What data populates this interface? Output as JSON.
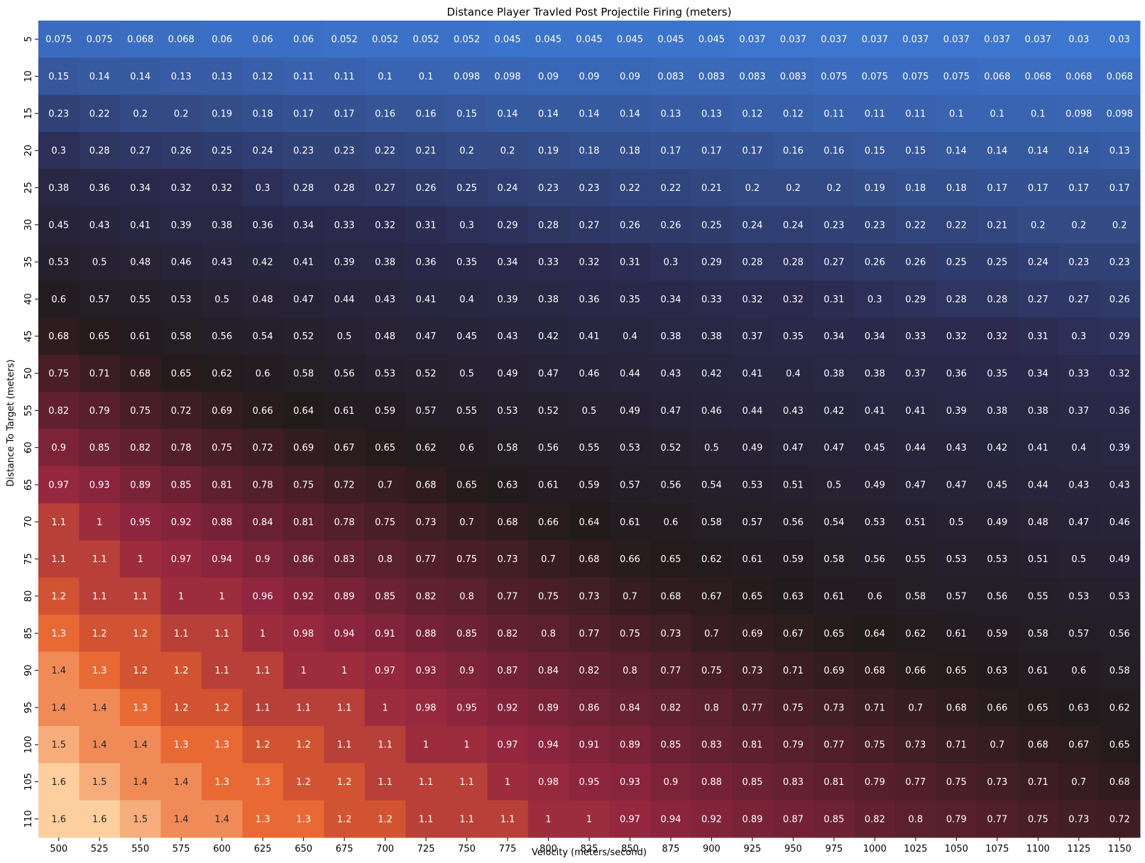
{
  "chart_data": {
    "type": "heatmap",
    "title": "Distance Player Travled Post Projectile Firing (meters)",
    "xlabel": "Velocity (meters/second)",
    "ylabel": "Distance To Target (meters)",
    "x": [
      "500",
      "525",
      "550",
      "575",
      "600",
      "625",
      "650",
      "675",
      "700",
      "725",
      "750",
      "775",
      "800",
      "825",
      "850",
      "875",
      "900",
      "925",
      "950",
      "975",
      "1000",
      "1025",
      "1050",
      "1075",
      "1100",
      "1125",
      "1150"
    ],
    "y": [
      "5",
      "10",
      "15",
      "20",
      "25",
      "30",
      "35",
      "40",
      "45",
      "50",
      "55",
      "60",
      "65",
      "70",
      "75",
      "80",
      "85",
      "90",
      "95",
      "100",
      "105",
      "110"
    ],
    "values": [
      [
        "0.075",
        "0.075",
        "0.068",
        "0.068",
        "0.06",
        "0.06",
        "0.06",
        "0.052",
        "0.052",
        "0.052",
        "0.052",
        "0.045",
        "0.045",
        "0.045",
        "0.045",
        "0.045",
        "0.045",
        "0.037",
        "0.037",
        "0.037",
        "0.037",
        "0.037",
        "0.037",
        "0.037",
        "0.037",
        "0.03",
        "0.03"
      ],
      [
        "0.15",
        "0.14",
        "0.14",
        "0.13",
        "0.13",
        "0.12",
        "0.11",
        "0.11",
        "0.1",
        "0.1",
        "0.098",
        "0.098",
        "0.09",
        "0.09",
        "0.09",
        "0.083",
        "0.083",
        "0.083",
        "0.083",
        "0.075",
        "0.075",
        "0.075",
        "0.075",
        "0.068",
        "0.068",
        "0.068",
        "0.068"
      ],
      [
        "0.23",
        "0.22",
        "0.2",
        "0.2",
        "0.19",
        "0.18",
        "0.17",
        "0.17",
        "0.16",
        "0.16",
        "0.15",
        "0.14",
        "0.14",
        "0.14",
        "0.14",
        "0.13",
        "0.13",
        "0.12",
        "0.12",
        "0.11",
        "0.11",
        "0.11",
        "0.1",
        "0.1",
        "0.1",
        "0.098",
        "0.098"
      ],
      [
        "0.3",
        "0.28",
        "0.27",
        "0.26",
        "0.25",
        "0.24",
        "0.23",
        "0.23",
        "0.22",
        "0.21",
        "0.2",
        "0.2",
        "0.19",
        "0.18",
        "0.18",
        "0.17",
        "0.17",
        "0.17",
        "0.16",
        "0.16",
        "0.15",
        "0.15",
        "0.14",
        "0.14",
        "0.14",
        "0.14",
        "0.13"
      ],
      [
        "0.38",
        "0.36",
        "0.34",
        "0.32",
        "0.32",
        "0.3",
        "0.28",
        "0.28",
        "0.27",
        "0.26",
        "0.25",
        "0.24",
        "0.23",
        "0.23",
        "0.22",
        "0.22",
        "0.21",
        "0.2",
        "0.2",
        "0.2",
        "0.19",
        "0.18",
        "0.18",
        "0.17",
        "0.17",
        "0.17",
        "0.17"
      ],
      [
        "0.45",
        "0.43",
        "0.41",
        "0.39",
        "0.38",
        "0.36",
        "0.34",
        "0.33",
        "0.32",
        "0.31",
        "0.3",
        "0.29",
        "0.28",
        "0.27",
        "0.26",
        "0.26",
        "0.25",
        "0.24",
        "0.24",
        "0.23",
        "0.23",
        "0.22",
        "0.22",
        "0.21",
        "0.2",
        "0.2",
        "0.2"
      ],
      [
        "0.53",
        "0.5",
        "0.48",
        "0.46",
        "0.43",
        "0.42",
        "0.41",
        "0.39",
        "0.38",
        "0.36",
        "0.35",
        "0.34",
        "0.33",
        "0.32",
        "0.31",
        "0.3",
        "0.29",
        "0.28",
        "0.28",
        "0.27",
        "0.26",
        "0.26",
        "0.25",
        "0.25",
        "0.24",
        "0.23",
        "0.23"
      ],
      [
        "0.6",
        "0.57",
        "0.55",
        "0.53",
        "0.5",
        "0.48",
        "0.47",
        "0.44",
        "0.43",
        "0.41",
        "0.4",
        "0.39",
        "0.38",
        "0.36",
        "0.35",
        "0.34",
        "0.33",
        "0.32",
        "0.32",
        "0.31",
        "0.3",
        "0.29",
        "0.28",
        "0.28",
        "0.27",
        "0.27",
        "0.26"
      ],
      [
        "0.68",
        "0.65",
        "0.61",
        "0.58",
        "0.56",
        "0.54",
        "0.52",
        "0.5",
        "0.48",
        "0.47",
        "0.45",
        "0.43",
        "0.42",
        "0.41",
        "0.4",
        "0.38",
        "0.38",
        "0.37",
        "0.35",
        "0.34",
        "0.34",
        "0.33",
        "0.32",
        "0.32",
        "0.31",
        "0.3",
        "0.29"
      ],
      [
        "0.75",
        "0.71",
        "0.68",
        "0.65",
        "0.62",
        "0.6",
        "0.58",
        "0.56",
        "0.53",
        "0.52",
        "0.5",
        "0.49",
        "0.47",
        "0.46",
        "0.44",
        "0.43",
        "0.42",
        "0.41",
        "0.4",
        "0.38",
        "0.38",
        "0.37",
        "0.36",
        "0.35",
        "0.34",
        "0.33",
        "0.32"
      ],
      [
        "0.82",
        "0.79",
        "0.75",
        "0.72",
        "0.69",
        "0.66",
        "0.64",
        "0.61",
        "0.59",
        "0.57",
        "0.55",
        "0.53",
        "0.52",
        "0.5",
        "0.49",
        "0.47",
        "0.46",
        "0.44",
        "0.43",
        "0.42",
        "0.41",
        "0.41",
        "0.39",
        "0.38",
        "0.38",
        "0.37",
        "0.36"
      ],
      [
        "0.9",
        "0.85",
        "0.82",
        "0.78",
        "0.75",
        "0.72",
        "0.69",
        "0.67",
        "0.65",
        "0.62",
        "0.6",
        "0.58",
        "0.56",
        "0.55",
        "0.53",
        "0.52",
        "0.5",
        "0.49",
        "0.47",
        "0.47",
        "0.45",
        "0.44",
        "0.43",
        "0.42",
        "0.41",
        "0.4",
        "0.39"
      ],
      [
        "0.97",
        "0.93",
        "0.89",
        "0.85",
        "0.81",
        "0.78",
        "0.75",
        "0.72",
        "0.7",
        "0.68",
        "0.65",
        "0.63",
        "0.61",
        "0.59",
        "0.57",
        "0.56",
        "0.54",
        "0.53",
        "0.51",
        "0.5",
        "0.49",
        "0.47",
        "0.47",
        "0.45",
        "0.44",
        "0.43",
        "0.43"
      ],
      [
        "1.1",
        "1",
        "0.95",
        "0.92",
        "0.88",
        "0.84",
        "0.81",
        "0.78",
        "0.75",
        "0.73",
        "0.7",
        "0.68",
        "0.66",
        "0.64",
        "0.61",
        "0.6",
        "0.58",
        "0.57",
        "0.56",
        "0.54",
        "0.53",
        "0.51",
        "0.5",
        "0.49",
        "0.48",
        "0.47",
        "0.46"
      ],
      [
        "1.1",
        "1.1",
        "1",
        "0.97",
        "0.94",
        "0.9",
        "0.86",
        "0.83",
        "0.8",
        "0.77",
        "0.75",
        "0.73",
        "0.7",
        "0.68",
        "0.66",
        "0.65",
        "0.62",
        "0.61",
        "0.59",
        "0.58",
        "0.56",
        "0.55",
        "0.53",
        "0.53",
        "0.51",
        "0.5",
        "0.49"
      ],
      [
        "1.2",
        "1.1",
        "1.1",
        "1",
        "1",
        "0.96",
        "0.92",
        "0.89",
        "0.85",
        "0.82",
        "0.8",
        "0.77",
        "0.75",
        "0.73",
        "0.7",
        "0.68",
        "0.67",
        "0.65",
        "0.63",
        "0.61",
        "0.6",
        "0.58",
        "0.57",
        "0.56",
        "0.55",
        "0.53",
        "0.53"
      ],
      [
        "1.3",
        "1.2",
        "1.2",
        "1.1",
        "1.1",
        "1",
        "0.98",
        "0.94",
        "0.91",
        "0.88",
        "0.85",
        "0.82",
        "0.8",
        "0.77",
        "0.75",
        "0.73",
        "0.7",
        "0.69",
        "0.67",
        "0.65",
        "0.64",
        "0.62",
        "0.61",
        "0.59",
        "0.58",
        "0.57",
        "0.56"
      ],
      [
        "1.4",
        "1.3",
        "1.2",
        "1.2",
        "1.1",
        "1.1",
        "1",
        "1",
        "0.97",
        "0.93",
        "0.9",
        "0.87",
        "0.84",
        "0.82",
        "0.8",
        "0.77",
        "0.75",
        "0.73",
        "0.71",
        "0.69",
        "0.68",
        "0.66",
        "0.65",
        "0.63",
        "0.61",
        "0.6",
        "0.58"
      ],
      [
        "1.4",
        "1.4",
        "1.3",
        "1.2",
        "1.2",
        "1.1",
        "1.1",
        "1.1",
        "1",
        "0.98",
        "0.95",
        "0.92",
        "0.89",
        "0.86",
        "0.84",
        "0.82",
        "0.8",
        "0.77",
        "0.75",
        "0.73",
        "0.71",
        "0.7",
        "0.68",
        "0.66",
        "0.65",
        "0.63",
        "0.62"
      ],
      [
        "1.5",
        "1.4",
        "1.4",
        "1.3",
        "1.3",
        "1.2",
        "1.2",
        "1.1",
        "1.1",
        "1",
        "1",
        "0.97",
        "0.94",
        "0.91",
        "0.89",
        "0.85",
        "0.83",
        "0.81",
        "0.79",
        "0.77",
        "0.75",
        "0.73",
        "0.71",
        "0.7",
        "0.68",
        "0.67",
        "0.65"
      ],
      [
        "1.6",
        "1.5",
        "1.4",
        "1.4",
        "1.3",
        "1.3",
        "1.2",
        "1.2",
        "1.1",
        "1.1",
        "1.1",
        "1",
        "0.98",
        "0.95",
        "0.93",
        "0.9",
        "0.88",
        "0.85",
        "0.83",
        "0.81",
        "0.79",
        "0.77",
        "0.75",
        "0.73",
        "0.71",
        "0.7",
        "0.68"
      ],
      [
        "1.6",
        "1.6",
        "1.5",
        "1.4",
        "1.4",
        "1.3",
        "1.3",
        "1.2",
        "1.2",
        "1.1",
        "1.1",
        "1.1",
        "1",
        "1",
        "0.97",
        "0.94",
        "0.92",
        "0.89",
        "0.87",
        "0.85",
        "0.82",
        "0.8",
        "0.79",
        "0.77",
        "0.75",
        "0.73",
        "0.72"
      ]
    ],
    "value_range": [
      0,
      1.6
    ],
    "colormap": [
      "#3f7fe0",
      "#2b2a4e",
      "#221b1b",
      "#92253f",
      "#e8622e",
      "#fdcf9e"
    ],
    "grid": false,
    "legend": "none"
  }
}
